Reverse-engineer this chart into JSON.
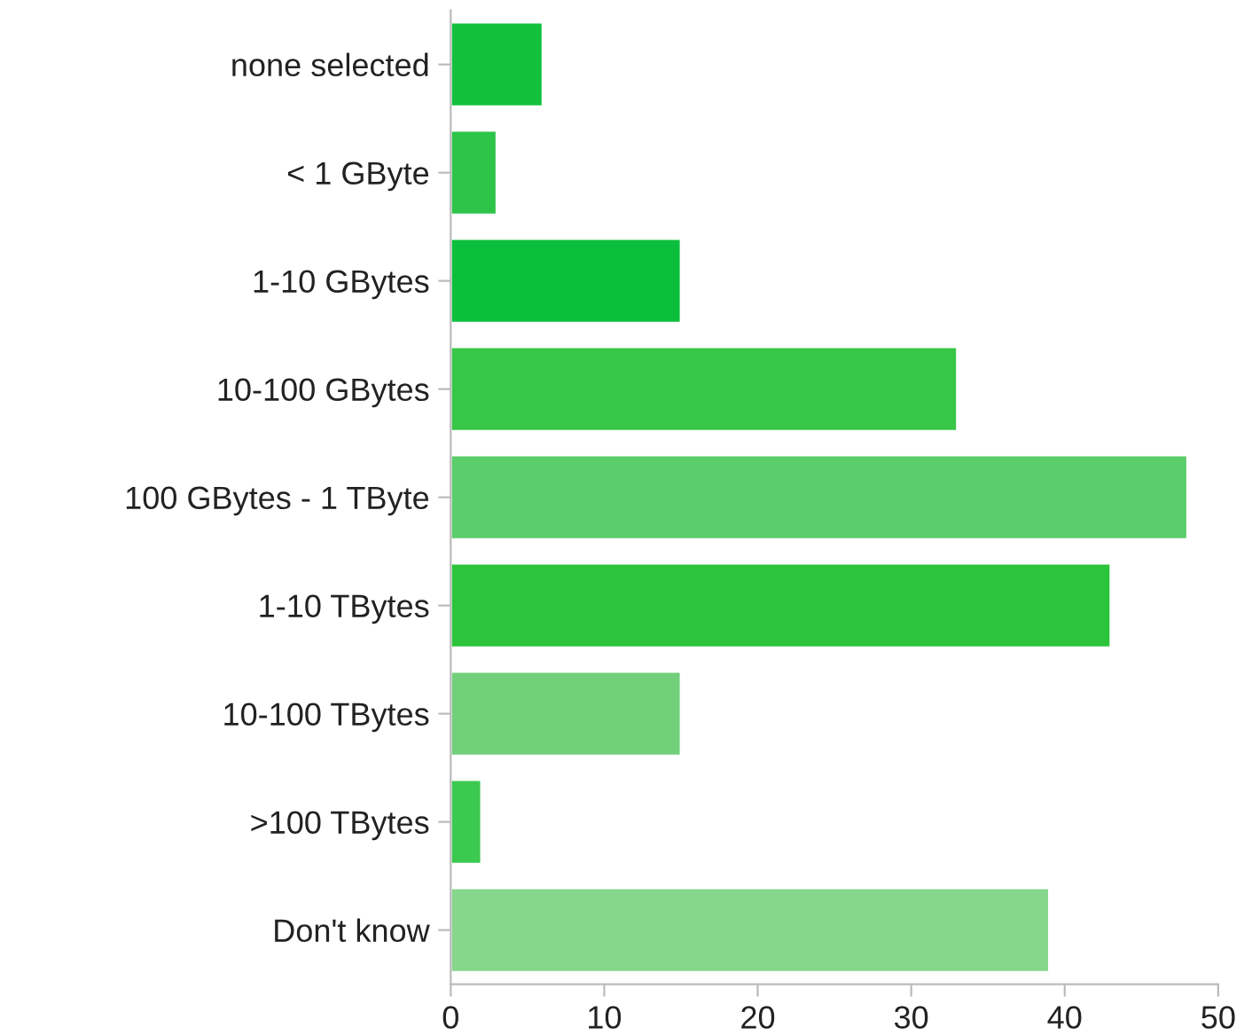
{
  "chart_data": {
    "type": "bar",
    "orientation": "horizontal",
    "categories": [
      "none selected",
      "< 1 GByte",
      "1-10 GBytes",
      "10-100 GBytes",
      "100 GBytes - 1 TByte",
      "1-10 TBytes",
      "10-100 TBytes",
      ">100 TBytes",
      "Don't know"
    ],
    "values": [
      6,
      3,
      15,
      33,
      48,
      43,
      15,
      2,
      39
    ],
    "colors": [
      "#12c03c",
      "#2ec44a",
      "#0bbf3c",
      "#37c647",
      "#5bcd6a",
      "#2cc43a",
      "#72d07a",
      "#3cc950",
      "#86d68c"
    ],
    "xlim": [
      0,
      50
    ],
    "xticks": [
      0,
      10,
      20,
      30,
      40,
      50
    ],
    "grid": false,
    "legend": false
  }
}
